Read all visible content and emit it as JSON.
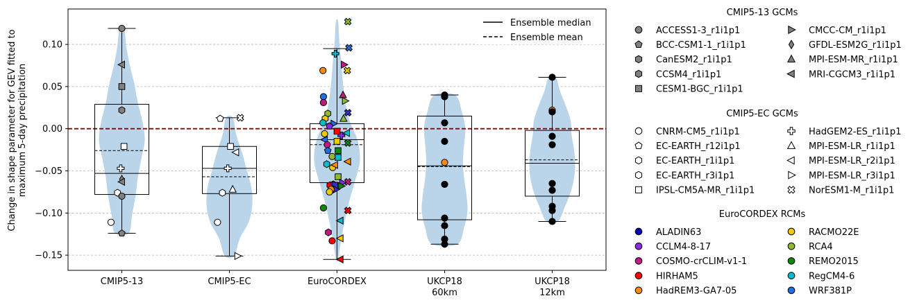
{
  "chart_data": {
    "type": "violin",
    "ylabel_line1": "Change in shape parameter for GEV fitted to",
    "ylabel_line2": "maximum 5-day precipitation",
    "ylim": [
      -0.168,
      0.142
    ],
    "yticks": [
      0.1,
      0.05,
      0.0,
      -0.05,
      -0.1,
      -0.15
    ],
    "ytick_labels": [
      "0.10",
      "0.05",
      "0.00",
      "−0.05",
      "−0.10",
      "−0.15"
    ],
    "grid": "horizontal dashed",
    "zero_line_color": "#8b0000",
    "violin_color": "#bad5ea",
    "categories": [
      {
        "label1": "CMIP5-13",
        "label2": ""
      },
      {
        "label1": "CMIP5-EC",
        "label2": ""
      },
      {
        "label1": "EuroCORDEX",
        "label2": ""
      },
      {
        "label1": "UKCP18",
        "label2": "60km"
      },
      {
        "label1": "UKCP18",
        "label2": "12km"
      }
    ],
    "legend_lines": {
      "placement": "top-right",
      "median_label": "Ensemble median",
      "mean_label": "Ensemble mean"
    },
    "groups": [
      {
        "box": {
          "q1": -0.078,
          "median": -0.053,
          "mean": -0.026,
          "q3": 0.029,
          "whisker_low": -0.124,
          "whisker_high": 0.119
        },
        "violin": {
          "min": -0.124,
          "max": 0.119,
          "profile": [
            0.3,
            0.45,
            0.6,
            0.7,
            0.85,
            1.0,
            0.9,
            0.7,
            0.55,
            0.35,
            0.2,
            0.1
          ]
        },
        "points": [
          {
            "x": 0,
            "y": 0.119,
            "m": "circle",
            "c": "#808080"
          },
          {
            "x": 0,
            "y": 0.076,
            "m": "triL",
            "c": "#808080"
          },
          {
            "x": 0,
            "y": 0.05,
            "m": "square",
            "c": "#808080"
          },
          {
            "x": 0,
            "y": 0.022,
            "m": "hexagon",
            "c": "#808080"
          },
          {
            "x": 0.04,
            "y": -0.021,
            "m": "square",
            "c": "#ffffff"
          },
          {
            "x": -0.02,
            "y": -0.047,
            "m": "plus",
            "c": "#ffffff"
          },
          {
            "x": 0,
            "y": -0.06,
            "m": "diamond",
            "c": "#808080"
          },
          {
            "x": 0,
            "y": -0.063,
            "m": "triL",
            "c": "#808080"
          },
          {
            "x": -0.08,
            "y": -0.076,
            "m": "hexagon",
            "c": "#ffffff"
          },
          {
            "x": 0,
            "y": -0.08,
            "m": "circle",
            "c": "#808080"
          },
          {
            "x": -0.2,
            "y": -0.111,
            "m": "circle",
            "c": "#ffffff"
          },
          {
            "x": 0,
            "y": -0.124,
            "m": "pentagon",
            "c": "#808080"
          }
        ]
      },
      {
        "box": {
          "q1": -0.077,
          "median": -0.047,
          "mean": -0.057,
          "q3": -0.021,
          "whisker_low": -0.151,
          "whisker_high": 0.013
        },
        "violin": {
          "min": -0.151,
          "max": 0.013,
          "profile": [
            0.2,
            0.45,
            0.85,
            1.0,
            0.95,
            0.75,
            0.55,
            0.3,
            0.15
          ]
        },
        "points": [
          {
            "x": 0.2,
            "y": 0.013,
            "m": "xcross",
            "c": "#ffffff"
          },
          {
            "x": -0.17,
            "y": 0.012,
            "m": "pentagon",
            "c": "#ffffff"
          },
          {
            "x": 0.02,
            "y": -0.021,
            "m": "square",
            "c": "#ffffff"
          },
          {
            "x": 0.12,
            "y": -0.028,
            "m": "triL",
            "c": "#ffffff"
          },
          {
            "x": -0.03,
            "y": -0.047,
            "m": "plus",
            "c": "#ffffff"
          },
          {
            "x": 0.06,
            "y": -0.072,
            "m": "triU",
            "c": "#ffffff"
          },
          {
            "x": -0.13,
            "y": -0.076,
            "m": "hexagon",
            "c": "#ffffff"
          },
          {
            "x": -0.22,
            "y": -0.111,
            "m": "circle",
            "c": "#ffffff"
          },
          {
            "x": 0.15,
            "y": -0.151,
            "m": "triR",
            "c": "#ffffff"
          }
        ]
      },
      {
        "box": {
          "q1": -0.064,
          "median": -0.013,
          "mean": -0.019,
          "q3": 0.006,
          "whisker_low": -0.155,
          "whisker_high": 0.095
        },
        "violin": {
          "min": -0.155,
          "max": 0.127,
          "profile": [
            0.05,
            0.18,
            0.35,
            0.55,
            0.8,
            1.0,
            0.9,
            0.55,
            0.35,
            0.25,
            0.18,
            0.1,
            0.05
          ]
        },
        "points": [
          {
            "x": 0.2,
            "y": 0.127,
            "m": "xcross",
            "c": "#8fbc2f"
          },
          {
            "x": 0.22,
            "y": 0.096,
            "m": "xcross",
            "c": "#1f6fe0"
          },
          {
            "x": -0.03,
            "y": 0.089,
            "m": "plus",
            "c": "#00bcd0"
          },
          {
            "x": 0.13,
            "y": 0.076,
            "m": "triR",
            "c": "#c21884"
          },
          {
            "x": 0.19,
            "y": 0.069,
            "m": "xcross",
            "c": "#f2c800"
          },
          {
            "x": -0.26,
            "y": 0.069,
            "m": "circle",
            "c": "#ff8c00"
          },
          {
            "x": 0.11,
            "y": 0.04,
            "m": "triU",
            "c": "#c21884"
          },
          {
            "x": 0.15,
            "y": 0.033,
            "m": "triR",
            "c": "#8fbc2f"
          },
          {
            "x": -0.25,
            "y": 0.038,
            "m": "circle",
            "c": "#1f6fe0"
          },
          {
            "x": -0.25,
            "y": 0.031,
            "m": "circle",
            "c": "#c21884"
          },
          {
            "x": -0.17,
            "y": 0.018,
            "m": "hexagon",
            "c": "#8fbc2f"
          },
          {
            "x": 0.2,
            "y": 0.019,
            "m": "xcross",
            "c": "#3030c8"
          },
          {
            "x": -0.22,
            "y": 0.012,
            "m": "hexagon",
            "c": "#f2c800"
          },
          {
            "x": 0.12,
            "y": 0.012,
            "m": "triU",
            "c": "#8fbc2f"
          },
          {
            "x": -0.26,
            "y": 0.007,
            "m": "circle",
            "c": "#00bcd0"
          },
          {
            "x": -0.06,
            "y": 0.006,
            "m": "triR",
            "c": "#1f6fe0"
          },
          {
            "x": -0.14,
            "y": 0.003,
            "m": "pentagon",
            "c": "#8a2be2"
          },
          {
            "x": 0.0,
            "y": -0.003,
            "m": "square",
            "c": "#ff0000"
          },
          {
            "x": 0.18,
            "y": -0.005,
            "m": "triL",
            "c": "#00bcd0"
          },
          {
            "x": 0.08,
            "y": -0.008,
            "m": "plus",
            "c": "#8a2be2"
          },
          {
            "x": -0.23,
            "y": -0.006,
            "m": "circle",
            "c": "#f2c800"
          },
          {
            "x": -0.23,
            "y": -0.013,
            "m": "triL",
            "c": "#1f6fe0"
          },
          {
            "x": 0.0,
            "y": -0.015,
            "m": "square",
            "c": "#f2c800"
          },
          {
            "x": 0.2,
            "y": -0.017,
            "m": "xcross",
            "c": "#0a8a0a"
          },
          {
            "x": -0.18,
            "y": -0.019,
            "m": "circle",
            "c": "#c21884"
          },
          {
            "x": 0.02,
            "y": -0.026,
            "m": "square",
            "c": "#0a8a0a"
          },
          {
            "x": -0.17,
            "y": -0.026,
            "m": "pentagon",
            "c": "#1f6fe0"
          },
          {
            "x": -0.09,
            "y": -0.033,
            "m": "circle",
            "c": "#8fbc2f"
          },
          {
            "x": 0.02,
            "y": -0.034,
            "m": "square",
            "c": "#00bcd0"
          },
          {
            "x": 0.2,
            "y": -0.039,
            "m": "triL",
            "c": "#ff8c00"
          },
          {
            "x": -0.19,
            "y": -0.042,
            "m": "hexagon",
            "c": "#00bcd0"
          },
          {
            "x": -0.08,
            "y": -0.046,
            "m": "circle",
            "c": "#f2c800"
          },
          {
            "x": -0.04,
            "y": -0.043,
            "m": "triL",
            "c": "#ff8c00"
          },
          {
            "x": 0.02,
            "y": -0.057,
            "m": "square",
            "c": "#8fbc2f"
          },
          {
            "x": 0.2,
            "y": -0.063,
            "m": "xcross",
            "c": "#c21884"
          },
          {
            "x": 0.1,
            "y": -0.064,
            "m": "triR",
            "c": "#8a2be2"
          },
          {
            "x": -0.13,
            "y": -0.067,
            "m": "hexagon",
            "c": "#ff0000"
          },
          {
            "x": -0.07,
            "y": -0.066,
            "m": "hexagon",
            "c": "#c21884"
          },
          {
            "x": 0.08,
            "y": -0.068,
            "m": "triR",
            "c": "#0a8a0a"
          },
          {
            "x": -0.04,
            "y": -0.067,
            "m": "square",
            "c": "#3030c8"
          },
          {
            "x": -0.02,
            "y": -0.072,
            "m": "triR",
            "c": "#3030c8"
          },
          {
            "x": -0.11,
            "y": -0.072,
            "m": "circle",
            "c": "#ff8c00"
          },
          {
            "x": -0.14,
            "y": -0.075,
            "m": "circle",
            "c": "#f2c800"
          },
          {
            "x": -0.25,
            "y": -0.094,
            "m": "circle",
            "c": "#0a8a0a"
          },
          {
            "x": 0.2,
            "y": -0.097,
            "m": "xcross",
            "c": "#ff0000"
          },
          {
            "x": 0.06,
            "y": -0.109,
            "m": "triL",
            "c": "#00bcd0"
          },
          {
            "x": -0.16,
            "y": -0.123,
            "m": "hexagon",
            "c": "#c21884"
          },
          {
            "x": 0.06,
            "y": -0.13,
            "m": "triL",
            "c": "#f2c800"
          },
          {
            "x": -0.09,
            "y": -0.133,
            "m": "circle",
            "c": "#ff0000"
          },
          {
            "x": 0.06,
            "y": -0.155,
            "m": "triL",
            "c": "#ff0000"
          }
        ]
      },
      {
        "box": {
          "q1": -0.108,
          "median": -0.044,
          "mean": -0.045,
          "q3": 0.015,
          "whisker_low": -0.137,
          "whisker_high": 0.04
        },
        "violin": {
          "min": -0.137,
          "max": 0.04,
          "profile": [
            0.55,
            0.85,
            1.0,
            0.95,
            0.85,
            0.8,
            0.85,
            0.9,
            0.75,
            0.45
          ]
        },
        "points": [
          {
            "x": 0,
            "y": 0.04,
            "m": "circle",
            "c": "#000000"
          },
          {
            "x": 0,
            "y": 0.038,
            "m": "circle",
            "c": "#000000"
          },
          {
            "x": 0,
            "y": 0.007,
            "m": "circle",
            "c": "#000000"
          },
          {
            "x": 0,
            "y": -0.015,
            "m": "circle",
            "c": "#000000"
          },
          {
            "x": 0,
            "y": -0.04,
            "m": "circle",
            "c": "#ff8c00"
          },
          {
            "x": 0,
            "y": -0.066,
            "m": "circle",
            "c": "#000000"
          },
          {
            "x": 0,
            "y": -0.106,
            "m": "circle",
            "c": "#000000"
          },
          {
            "x": 0,
            "y": -0.115,
            "m": "circle",
            "c": "#000000"
          },
          {
            "x": 0,
            "y": -0.131,
            "m": "circle",
            "c": "#000000"
          },
          {
            "x": 0,
            "y": -0.137,
            "m": "circle",
            "c": "#000000"
          }
        ]
      },
      {
        "box": {
          "q1": -0.08,
          "median": -0.041,
          "mean": -0.037,
          "q3": -0.002,
          "whisker_low": -0.11,
          "whisker_high": 0.061
        },
        "violin": {
          "min": -0.11,
          "max": 0.061,
          "profile": [
            0.25,
            0.55,
            0.8,
            0.95,
            1.0,
            0.95,
            0.85,
            0.8,
            0.6,
            0.35,
            0.15
          ]
        },
        "points": [
          {
            "x": 0,
            "y": 0.061,
            "m": "circle",
            "c": "#000000"
          },
          {
            "x": 0,
            "y": 0.022,
            "m": "circle",
            "c": "#ff8c00"
          },
          {
            "x": 0,
            "y": 0.02,
            "m": "circle",
            "c": "#000000"
          },
          {
            "x": 0,
            "y": -0.009,
            "m": "circle",
            "c": "#000000"
          },
          {
            "x": 0,
            "y": -0.019,
            "m": "circle",
            "c": "#000000"
          },
          {
            "x": 0,
            "y": -0.065,
            "m": "circle",
            "c": "#000000"
          },
          {
            "x": 0,
            "y": -0.073,
            "m": "circle",
            "c": "#000000"
          },
          {
            "x": 0,
            "y": -0.092,
            "m": "circle",
            "c": "#000000"
          },
          {
            "x": 0,
            "y": -0.097,
            "m": "circle",
            "c": "#000000"
          },
          {
            "x": 0,
            "y": -0.11,
            "m": "circle",
            "c": "#000000"
          }
        ]
      }
    ],
    "legend_models": {
      "placement": "right",
      "sections": [
        {
          "title": "CMIP5-13 GCMs",
          "items": [
            {
              "label": "ACCESS1-3_r1i1p1",
              "m": "circle",
              "c": "#808080"
            },
            {
              "label": "BCC-CSM1-1_r1i1p1",
              "m": "pentagon",
              "c": "#808080"
            },
            {
              "label": "CanESM2_r1i1p1",
              "m": "hexagon",
              "c": "#808080"
            },
            {
              "label": "CCSM4_r1i1p1",
              "m": "hexagon",
              "c": "#808080"
            },
            {
              "label": "CESM1-BGC_r1i1p1",
              "m": "square",
              "c": "#808080"
            },
            {
              "label": "CMCC-CM_r1i1p1",
              "m": "triR",
              "c": "#808080"
            },
            {
              "label": "GFDL-ESM2G_r1i1p1",
              "m": "diamond",
              "c": "#808080"
            },
            {
              "label": "MPI-ESM-MR_r1i1p1",
              "m": "triU",
              "c": "#808080"
            },
            {
              "label": "MRI-CGCM3_r1i1p1",
              "m": "triL",
              "c": "#808080"
            }
          ]
        },
        {
          "title": "CMIP5-EC GCMs",
          "items": [
            {
              "label": "CNRM-CM5_r1i1p1",
              "m": "circle",
              "c": "#ffffff"
            },
            {
              "label": "EC-EARTH_r12i1p1",
              "m": "pentagon",
              "c": "#ffffff"
            },
            {
              "label": "EC-EARTH_r1i1p1",
              "m": "hexagon",
              "c": "#ffffff"
            },
            {
              "label": "EC-EARTH_r3i1p1",
              "m": "hexagon",
              "c": "#ffffff"
            },
            {
              "label": "IPSL-CM5A-MR_r1i1p1",
              "m": "square",
              "c": "#ffffff"
            },
            {
              "label": "HadGEM2-ES_r1i1p1",
              "m": "plus",
              "c": "#ffffff"
            },
            {
              "label": "MPI-ESM-LR_r1i1p1",
              "m": "triU",
              "c": "#ffffff"
            },
            {
              "label": "MPI-ESM-LR_r2i1p1",
              "m": "triL",
              "c": "#ffffff"
            },
            {
              "label": "MPI-ESM-LR_r3i1p1",
              "m": "triR",
              "c": "#ffffff"
            },
            {
              "label": "NorESM1-M_r1i1p1",
              "m": "xcross",
              "c": "#ffffff"
            }
          ]
        },
        {
          "title": "EuroCORDEX RCMs",
          "items": [
            {
              "label": "ALADIN63",
              "m": "circle",
              "c": "#0000b0"
            },
            {
              "label": "CCLM4-8-17",
              "m": "circle",
              "c": "#8a2be2"
            },
            {
              "label": "COSMO-crCLIM-v1-1",
              "m": "circle",
              "c": "#c21884"
            },
            {
              "label": "HIRHAM5",
              "m": "circle",
              "c": "#ff0000"
            },
            {
              "label": "HadREM3-GA7-05",
              "m": "circle",
              "c": "#ff8c00"
            },
            {
              "label": "RACMO22E",
              "m": "circle",
              "c": "#f2c800"
            },
            {
              "label": "RCA4",
              "m": "circle",
              "c": "#8fbc2f"
            },
            {
              "label": "REMO2015",
              "m": "circle",
              "c": "#0a8a0a"
            },
            {
              "label": "RegCM4-6",
              "m": "circle",
              "c": "#00bcd0"
            },
            {
              "label": "WRF381P",
              "m": "circle",
              "c": "#1f6fe0"
            }
          ]
        }
      ]
    }
  }
}
